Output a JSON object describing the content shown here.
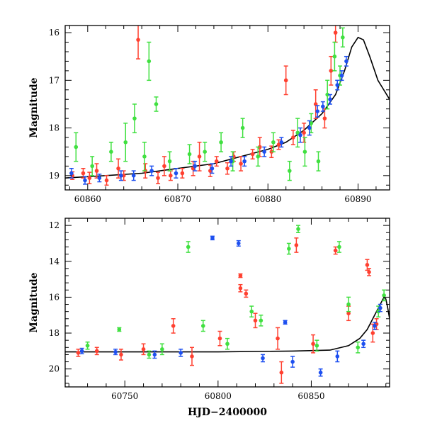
{
  "colors": {
    "red": "#ff4030",
    "green": "#40e040",
    "blue": "#1e50f0",
    "model": "#000000"
  },
  "chart_data": [
    {
      "type": "scatter",
      "panel": "top",
      "xlabel": "",
      "ylabel": "Magnitude",
      "xlim": [
        60857.5,
        60893.5
      ],
      "ylim": [
        19.3,
        15.85
      ],
      "y_inverted": true,
      "xticks": [
        60860,
        60870,
        60880,
        60890
      ],
      "yticks": [
        16,
        17,
        18,
        19
      ],
      "xtick_labels": [
        "60860",
        "60870",
        "60880",
        "60890"
      ],
      "ytick_labels": [
        "16",
        "17",
        "18",
        "19"
      ],
      "model_curve": [
        [
          60857.5,
          19.05
        ],
        [
          60862,
          19.0
        ],
        [
          60866,
          18.95
        ],
        [
          60870,
          18.85
        ],
        [
          60874,
          18.75
        ],
        [
          60877,
          18.6
        ],
        [
          60880,
          18.45
        ],
        [
          60882,
          18.3
        ],
        [
          60884,
          18.05
        ],
        [
          60886,
          17.7
        ],
        [
          60887.5,
          17.3
        ],
        [
          60888.5,
          16.8
        ],
        [
          60889.3,
          16.3
        ],
        [
          60890,
          16.1
        ],
        [
          60890.6,
          16.15
        ],
        [
          60891.3,
          16.5
        ],
        [
          60892.2,
          17.0
        ],
        [
          60893.5,
          17.4
        ]
      ],
      "series": [
        {
          "color": "red",
          "points": [
            [
              60858.3,
              19.0,
              0.08
            ],
            [
              60859.5,
              18.95,
              0.1
            ],
            [
              60860.2,
              19.05,
              0.12
            ],
            [
              60861.0,
              18.9,
              0.15
            ],
            [
              60862.1,
              19.1,
              0.1
            ],
            [
              60863.4,
              18.85,
              0.2
            ],
            [
              60864.0,
              19.0,
              0.1
            ],
            [
              60865.6,
              16.15,
              0.4
            ],
            [
              60866.4,
              18.9,
              0.15
            ],
            [
              60867.8,
              19.05,
              0.12
            ],
            [
              60868.5,
              18.8,
              0.2
            ],
            [
              60869.2,
              19.0,
              0.1
            ],
            [
              60870.5,
              18.95,
              0.1
            ],
            [
              60871.7,
              18.85,
              0.15
            ],
            [
              60872.4,
              18.6,
              0.3
            ],
            [
              60873.6,
              18.9,
              0.12
            ],
            [
              60874.3,
              18.7,
              0.1
            ],
            [
              60875.5,
              18.85,
              0.12
            ],
            [
              60876.2,
              18.6,
              0.1
            ],
            [
              60877.0,
              18.75,
              0.15
            ],
            [
              60878.3,
              18.55,
              0.1
            ],
            [
              60879.1,
              18.4,
              0.2
            ],
            [
              60880.4,
              18.5,
              0.12
            ],
            [
              60881.2,
              18.35,
              0.1
            ],
            [
              60882.0,
              17.0,
              0.3
            ],
            [
              60882.8,
              18.2,
              0.15
            ],
            [
              60884.0,
              18.1,
              0.2
            ],
            [
              60885.3,
              17.5,
              0.3
            ],
            [
              60886.3,
              17.8,
              0.2
            ],
            [
              60887.0,
              16.8,
              0.3
            ],
            [
              60887.5,
              16.0,
              0.2
            ]
          ]
        },
        {
          "color": "green",
          "points": [
            [
              60858.7,
              18.4,
              0.3
            ],
            [
              60860.5,
              18.8,
              0.2
            ],
            [
              60862.6,
              18.5,
              0.2
            ],
            [
              60864.2,
              18.3,
              0.4
            ],
            [
              60865.2,
              17.8,
              0.3
            ],
            [
              60866.3,
              18.6,
              0.3
            ],
            [
              60866.8,
              16.6,
              0.4
            ],
            [
              60867.6,
              17.5,
              0.15
            ],
            [
              60869.1,
              18.7,
              0.2
            ],
            [
              60871.3,
              18.55,
              0.2
            ],
            [
              60873.0,
              18.5,
              0.2
            ],
            [
              60874.8,
              18.3,
              0.2
            ],
            [
              60876.1,
              18.7,
              0.2
            ],
            [
              60877.2,
              18.0,
              0.2
            ],
            [
              60878.9,
              18.6,
              0.2
            ],
            [
              60880.6,
              18.3,
              0.2
            ],
            [
              60882.4,
              18.9,
              0.2
            ],
            [
              60883.3,
              18.1,
              0.3
            ],
            [
              60884.1,
              18.5,
              0.3
            ],
            [
              60884.8,
              17.9,
              0.2
            ],
            [
              60885.6,
              18.7,
              0.2
            ],
            [
              60886.6,
              17.3,
              0.3
            ],
            [
              60887.4,
              16.5,
              0.3
            ],
            [
              60888.0,
              16.9,
              0.2
            ],
            [
              60888.3,
              16.1,
              0.2
            ]
          ]
        },
        {
          "color": "blue",
          "points": [
            [
              60858.2,
              18.95,
              0.1
            ],
            [
              60859.7,
              19.1,
              0.08
            ],
            [
              60861.3,
              19.05,
              0.08
            ],
            [
              60863.7,
              19.0,
              0.1
            ],
            [
              60865.1,
              19.0,
              0.1
            ],
            [
              60867.1,
              18.9,
              0.1
            ],
            [
              60869.8,
              18.95,
              0.1
            ],
            [
              60871.9,
              18.8,
              0.1
            ],
            [
              60873.8,
              18.85,
              0.1
            ],
            [
              60875.9,
              18.7,
              0.1
            ],
            [
              60877.4,
              18.7,
              0.1
            ],
            [
              60879.6,
              18.5,
              0.1
            ],
            [
              60881.5,
              18.3,
              0.1
            ],
            [
              60883.6,
              18.15,
              0.15
            ],
            [
              60884.6,
              18.0,
              0.15
            ],
            [
              60885.5,
              17.65,
              0.12
            ],
            [
              60886.1,
              17.55,
              0.1
            ],
            [
              60886.9,
              17.4,
              0.1
            ],
            [
              60887.7,
              17.1,
              0.1
            ],
            [
              60888.2,
              16.9,
              0.1
            ],
            [
              60888.7,
              16.6,
              0.1
            ]
          ]
        }
      ]
    },
    {
      "type": "scatter",
      "panel": "bottom",
      "xlabel": "HJD−2400000",
      "ylabel": "Magnitude",
      "xlim": [
        60718,
        60892
      ],
      "ylim": [
        21.0,
        11.6
      ],
      "y_inverted": true,
      "xticks": [
        60750,
        60800,
        60850
      ],
      "yticks": [
        12,
        14,
        16,
        18,
        20
      ],
      "xtick_labels": [
        "60750",
        "60800",
        "60850"
      ],
      "ytick_labels": [
        "12",
        "14",
        "16",
        "18",
        "20"
      ],
      "model_curve": [
        [
          60718,
          19.05
        ],
        [
          60760,
          19.05
        ],
        [
          60800,
          19.05
        ],
        [
          60840,
          19.0
        ],
        [
          60860,
          18.95
        ],
        [
          60870,
          18.7
        ],
        [
          60876,
          18.3
        ],
        [
          60880,
          17.8
        ],
        [
          60884,
          17.0
        ],
        [
          60887,
          16.4
        ],
        [
          60889,
          16.0
        ],
        [
          60890,
          16.1
        ],
        [
          60891,
          16.6
        ],
        [
          60892,
          17.2
        ]
      ],
      "series": [
        {
          "color": "red",
          "points": [
            [
              60725,
              19.1,
              0.2
            ],
            [
              60735,
              19.0,
              0.2
            ],
            [
              60748,
              19.2,
              0.3
            ],
            [
              60760,
              18.9,
              0.3
            ],
            [
              60776,
              17.6,
              0.4
            ],
            [
              60786,
              19.3,
              0.5
            ],
            [
              60801,
              18.3,
              0.4
            ],
            [
              60812,
              14.8,
              0.1
            ],
            [
              60812,
              15.5,
              0.2
            ],
            [
              60815,
              15.8,
              0.2
            ],
            [
              60820,
              17.3,
              0.4
            ],
            [
              60832,
              18.3,
              0.6
            ],
            [
              60834,
              20.2,
              0.6
            ],
            [
              60842,
              13.1,
              0.4
            ],
            [
              60851,
              18.6,
              0.5
            ],
            [
              60863,
              13.4,
              0.2
            ],
            [
              60870,
              16.9,
              0.4
            ],
            [
              60880,
              14.2,
              0.3
            ],
            [
              60881,
              14.6,
              0.2
            ],
            [
              60883,
              18.0,
              0.5
            ],
            [
              60885,
              17.5,
              0.3
            ]
          ]
        },
        {
          "color": "green",
          "points": [
            [
              60730,
              18.7,
              0.2
            ],
            [
              60747,
              17.8,
              0.1
            ],
            [
              60763,
              19.2,
              0.2
            ],
            [
              60770,
              18.9,
              0.3
            ],
            [
              60784,
              13.2,
              0.3
            ],
            [
              60792,
              17.6,
              0.3
            ],
            [
              60805,
              18.6,
              0.3
            ],
            [
              60818,
              16.8,
              0.3
            ],
            [
              60823,
              17.3,
              0.3
            ],
            [
              60838,
              13.3,
              0.3
            ],
            [
              60843,
              12.2,
              0.2
            ],
            [
              60853,
              18.7,
              0.3
            ],
            [
              60865,
              13.2,
              0.3
            ],
            [
              60870,
              16.4,
              0.4
            ],
            [
              60875,
              18.8,
              0.3
            ],
            [
              60886,
              16.8,
              0.3
            ],
            [
              60889,
              15.9,
              0.3
            ]
          ]
        },
        {
          "color": "blue",
          "points": [
            [
              60727,
              19.0,
              0.15
            ],
            [
              60745,
              19.05,
              0.15
            ],
            [
              60766,
              19.2,
              0.2
            ],
            [
              60780,
              19.1,
              0.2
            ],
            [
              60797,
              12.7,
              0.1
            ],
            [
              60811,
              13.0,
              0.15
            ],
            [
              60824,
              19.4,
              0.2
            ],
            [
              60836,
              17.4,
              0.1
            ],
            [
              60840,
              19.6,
              0.3
            ],
            [
              60855,
              20.2,
              0.2
            ],
            [
              60864,
              19.3,
              0.3
            ],
            [
              60878,
              18.6,
              0.2
            ],
            [
              60884,
              17.6,
              0.2
            ],
            [
              60887,
              16.6,
              0.2
            ]
          ]
        }
      ]
    }
  ]
}
